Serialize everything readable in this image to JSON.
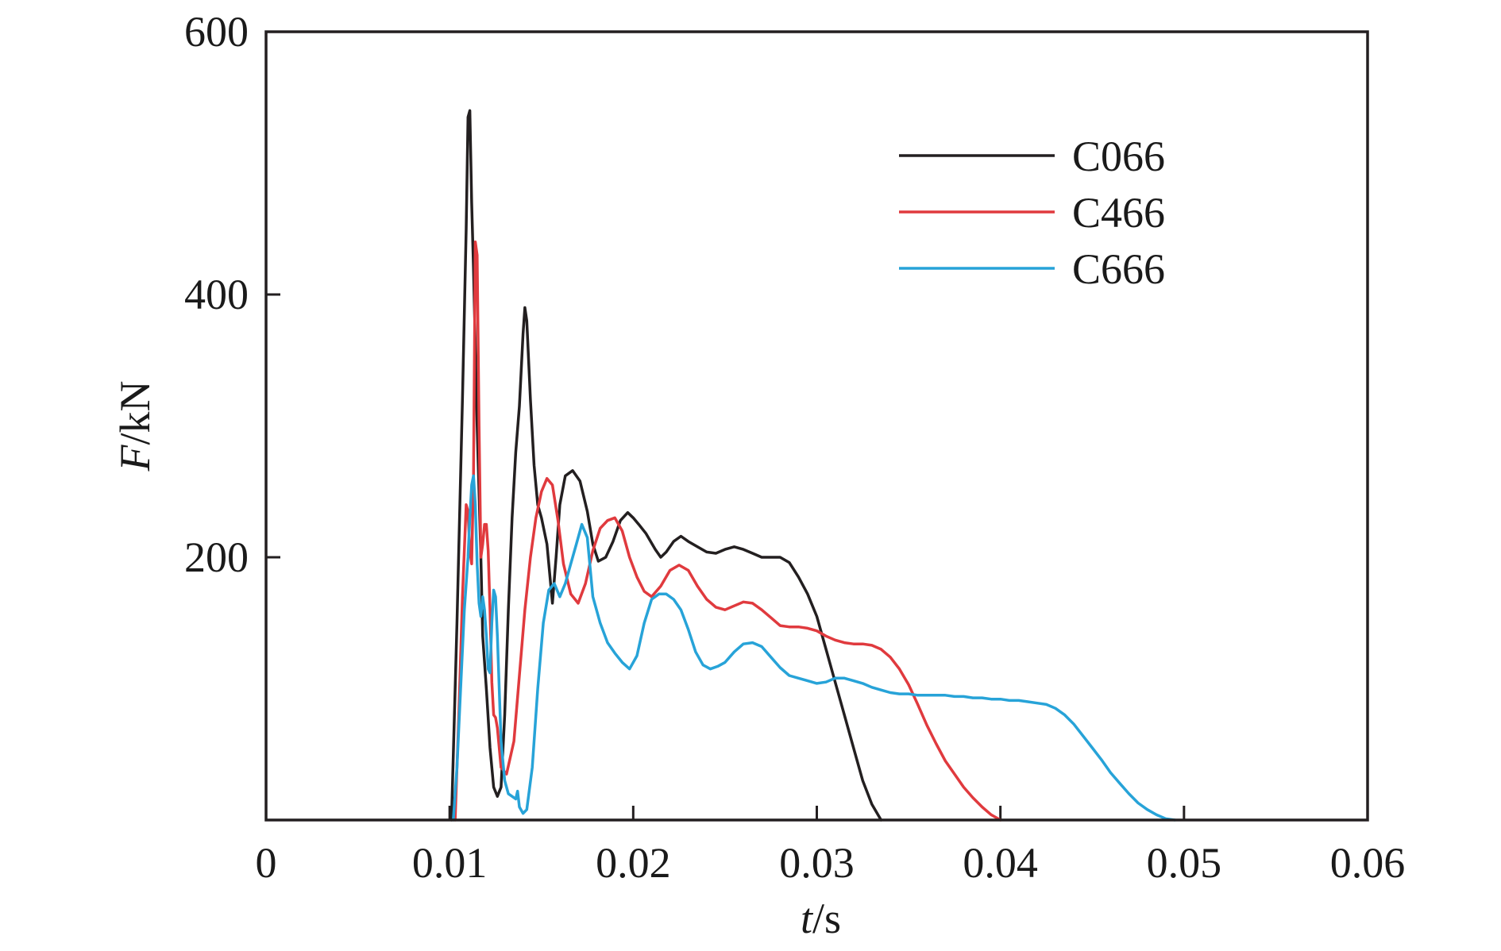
{
  "chart_data": {
    "type": "line",
    "title": "",
    "xlabel": {
      "var": "t",
      "unit": "/s"
    },
    "ylabel": {
      "var": "F",
      "unit": "/kN"
    },
    "xlim": [
      0,
      0.06
    ],
    "ylim": [
      0,
      600
    ],
    "xticks": [
      0,
      0.01,
      0.02,
      0.03,
      0.04,
      0.05,
      0.06
    ],
    "xtick_labels": [
      "0",
      "0.01",
      "0.02",
      "0.03",
      "0.04",
      "0.05",
      "0.06"
    ],
    "yticks": [
      200,
      400,
      600
    ],
    "ytick_labels": [
      "200",
      "400",
      "600"
    ],
    "grid": false,
    "legend_position": "top-right",
    "series": [
      {
        "name": "C066",
        "color": "#231f20",
        "points": [
          [
            0.0101,
            0
          ],
          [
            0.0104,
            150
          ],
          [
            0.0107,
            320
          ],
          [
            0.0109,
            450
          ],
          [
            0.011,
            535
          ],
          [
            0.0111,
            540
          ],
          [
            0.0112,
            470
          ],
          [
            0.0113,
            420
          ],
          [
            0.0115,
            300
          ],
          [
            0.0117,
            200
          ],
          [
            0.0118,
            140
          ],
          [
            0.012,
            100
          ],
          [
            0.0122,
            55
          ],
          [
            0.0124,
            25
          ],
          [
            0.0126,
            18
          ],
          [
            0.0128,
            25
          ],
          [
            0.013,
            80
          ],
          [
            0.0132,
            160
          ],
          [
            0.0134,
            230
          ],
          [
            0.0136,
            280
          ],
          [
            0.0138,
            315
          ],
          [
            0.014,
            370
          ],
          [
            0.0141,
            390
          ],
          [
            0.0142,
            380
          ],
          [
            0.0144,
            320
          ],
          [
            0.0146,
            270
          ],
          [
            0.0148,
            240
          ],
          [
            0.015,
            230
          ],
          [
            0.0153,
            210
          ],
          [
            0.0156,
            165
          ],
          [
            0.0158,
            200
          ],
          [
            0.016,
            240
          ],
          [
            0.0163,
            262
          ],
          [
            0.0167,
            266
          ],
          [
            0.0171,
            258
          ],
          [
            0.0175,
            235
          ],
          [
            0.0178,
            210
          ],
          [
            0.0181,
            197
          ],
          [
            0.0185,
            200
          ],
          [
            0.0189,
            212
          ],
          [
            0.0193,
            228
          ],
          [
            0.0197,
            234
          ],
          [
            0.02,
            230
          ],
          [
            0.0203,
            225
          ],
          [
            0.0207,
            218
          ],
          [
            0.0212,
            206
          ],
          [
            0.0215,
            200
          ],
          [
            0.0218,
            204
          ],
          [
            0.0222,
            212
          ],
          [
            0.0226,
            216
          ],
          [
            0.023,
            212
          ],
          [
            0.0235,
            208
          ],
          [
            0.024,
            204
          ],
          [
            0.0245,
            203
          ],
          [
            0.025,
            206
          ],
          [
            0.0255,
            208
          ],
          [
            0.026,
            206
          ],
          [
            0.0265,
            203
          ],
          [
            0.027,
            200
          ],
          [
            0.0275,
            200
          ],
          [
            0.028,
            200
          ],
          [
            0.0285,
            196
          ],
          [
            0.029,
            185
          ],
          [
            0.0295,
            172
          ],
          [
            0.03,
            155
          ],
          [
            0.0305,
            130
          ],
          [
            0.031,
            105
          ],
          [
            0.0315,
            80
          ],
          [
            0.032,
            55
          ],
          [
            0.0325,
            30
          ],
          [
            0.033,
            12
          ],
          [
            0.0335,
            0
          ]
        ]
      },
      {
        "name": "C466",
        "color": "#e03a3e",
        "points": [
          [
            0.0103,
            0
          ],
          [
            0.0105,
            80
          ],
          [
            0.0107,
            170
          ],
          [
            0.0109,
            240
          ],
          [
            0.011,
            235
          ],
          [
            0.0111,
            205
          ],
          [
            0.0112,
            195
          ],
          [
            0.0113,
            260
          ],
          [
            0.0114,
            440
          ],
          [
            0.0115,
            430
          ],
          [
            0.0116,
            300
          ],
          [
            0.0117,
            200
          ],
          [
            0.0118,
            210
          ],
          [
            0.0119,
            225
          ],
          [
            0.012,
            225
          ],
          [
            0.0121,
            205
          ],
          [
            0.0122,
            160
          ],
          [
            0.0123,
            105
          ],
          [
            0.0124,
            80
          ],
          [
            0.0125,
            78
          ],
          [
            0.0126,
            70
          ],
          [
            0.0128,
            40
          ],
          [
            0.0131,
            35
          ],
          [
            0.0135,
            60
          ],
          [
            0.0138,
            110
          ],
          [
            0.0141,
            160
          ],
          [
            0.0144,
            200
          ],
          [
            0.0147,
            230
          ],
          [
            0.015,
            250
          ],
          [
            0.0153,
            260
          ],
          [
            0.0156,
            255
          ],
          [
            0.0159,
            228
          ],
          [
            0.0162,
            195
          ],
          [
            0.0166,
            172
          ],
          [
            0.017,
            165
          ],
          [
            0.0174,
            180
          ],
          [
            0.0178,
            205
          ],
          [
            0.0182,
            222
          ],
          [
            0.0186,
            228
          ],
          [
            0.019,
            230
          ],
          [
            0.0194,
            220
          ],
          [
            0.0198,
            200
          ],
          [
            0.0202,
            185
          ],
          [
            0.0206,
            174
          ],
          [
            0.021,
            170
          ],
          [
            0.0215,
            178
          ],
          [
            0.022,
            190
          ],
          [
            0.0225,
            194
          ],
          [
            0.023,
            190
          ],
          [
            0.0235,
            178
          ],
          [
            0.024,
            168
          ],
          [
            0.0245,
            162
          ],
          [
            0.025,
            160
          ],
          [
            0.0255,
            163
          ],
          [
            0.026,
            166
          ],
          [
            0.0265,
            165
          ],
          [
            0.027,
            160
          ],
          [
            0.0275,
            154
          ],
          [
            0.028,
            148
          ],
          [
            0.0285,
            147
          ],
          [
            0.029,
            147
          ],
          [
            0.0295,
            146
          ],
          [
            0.03,
            144
          ],
          [
            0.0305,
            140
          ],
          [
            0.031,
            137
          ],
          [
            0.0315,
            135
          ],
          [
            0.032,
            134
          ],
          [
            0.0325,
            134
          ],
          [
            0.033,
            133
          ],
          [
            0.0335,
            130
          ],
          [
            0.034,
            124
          ],
          [
            0.0345,
            115
          ],
          [
            0.035,
            103
          ],
          [
            0.0355,
            88
          ],
          [
            0.036,
            72
          ],
          [
            0.0365,
            58
          ],
          [
            0.037,
            45
          ],
          [
            0.0375,
            35
          ],
          [
            0.038,
            25
          ],
          [
            0.0385,
            17
          ],
          [
            0.039,
            10
          ],
          [
            0.0395,
            4
          ],
          [
            0.04,
            0
          ]
        ]
      },
      {
        "name": "C666",
        "color": "#27a3d8",
        "points": [
          [
            0.0102,
            0
          ],
          [
            0.0104,
            40
          ],
          [
            0.0106,
            100
          ],
          [
            0.0108,
            160
          ],
          [
            0.011,
            200
          ],
          [
            0.0111,
            230
          ],
          [
            0.0112,
            255
          ],
          [
            0.0113,
            262
          ],
          [
            0.0114,
            240
          ],
          [
            0.0115,
            195
          ],
          [
            0.0116,
            165
          ],
          [
            0.0117,
            155
          ],
          [
            0.0118,
            170
          ],
          [
            0.0119,
            160
          ],
          [
            0.012,
            140
          ],
          [
            0.0121,
            115
          ],
          [
            0.0122,
            112
          ],
          [
            0.0123,
            150
          ],
          [
            0.0124,
            175
          ],
          [
            0.0125,
            170
          ],
          [
            0.0126,
            140
          ],
          [
            0.0127,
            100
          ],
          [
            0.0128,
            60
          ],
          [
            0.013,
            30
          ],
          [
            0.0132,
            20
          ],
          [
            0.0134,
            18
          ],
          [
            0.0136,
            16
          ],
          [
            0.0137,
            22
          ],
          [
            0.0138,
            10
          ],
          [
            0.014,
            5
          ],
          [
            0.0142,
            8
          ],
          [
            0.0145,
            40
          ],
          [
            0.0148,
            100
          ],
          [
            0.0151,
            150
          ],
          [
            0.0154,
            175
          ],
          [
            0.0157,
            180
          ],
          [
            0.016,
            170
          ],
          [
            0.0163,
            180
          ],
          [
            0.0166,
            195
          ],
          [
            0.0169,
            210
          ],
          [
            0.0172,
            225
          ],
          [
            0.0175,
            215
          ],
          [
            0.0178,
            170
          ],
          [
            0.0182,
            150
          ],
          [
            0.0186,
            135
          ],
          [
            0.019,
            127
          ],
          [
            0.0194,
            120
          ],
          [
            0.0198,
            115
          ],
          [
            0.0202,
            125
          ],
          [
            0.0206,
            150
          ],
          [
            0.021,
            168
          ],
          [
            0.0214,
            172
          ],
          [
            0.0218,
            172
          ],
          [
            0.0222,
            168
          ],
          [
            0.0226,
            160
          ],
          [
            0.023,
            145
          ],
          [
            0.0234,
            128
          ],
          [
            0.0238,
            118
          ],
          [
            0.0242,
            115
          ],
          [
            0.0246,
            117
          ],
          [
            0.025,
            120
          ],
          [
            0.0255,
            128
          ],
          [
            0.026,
            134
          ],
          [
            0.0265,
            135
          ],
          [
            0.027,
            132
          ],
          [
            0.0275,
            124
          ],
          [
            0.028,
            116
          ],
          [
            0.0285,
            110
          ],
          [
            0.029,
            108
          ],
          [
            0.0295,
            106
          ],
          [
            0.03,
            104
          ],
          [
            0.0305,
            105
          ],
          [
            0.031,
            108
          ],
          [
            0.0315,
            108
          ],
          [
            0.032,
            106
          ],
          [
            0.0325,
            104
          ],
          [
            0.033,
            101
          ],
          [
            0.0335,
            99
          ],
          [
            0.034,
            97
          ],
          [
            0.0345,
            96
          ],
          [
            0.035,
            96
          ],
          [
            0.0355,
            95
          ],
          [
            0.036,
            95
          ],
          [
            0.0365,
            95
          ],
          [
            0.037,
            95
          ],
          [
            0.0375,
            94
          ],
          [
            0.038,
            94
          ],
          [
            0.0385,
            93
          ],
          [
            0.039,
            93
          ],
          [
            0.0395,
            92
          ],
          [
            0.04,
            92
          ],
          [
            0.0405,
            91
          ],
          [
            0.041,
            91
          ],
          [
            0.0415,
            90
          ],
          [
            0.042,
            89
          ],
          [
            0.0425,
            88
          ],
          [
            0.043,
            85
          ],
          [
            0.0435,
            80
          ],
          [
            0.044,
            73
          ],
          [
            0.0445,
            64
          ],
          [
            0.045,
            55
          ],
          [
            0.0455,
            46
          ],
          [
            0.046,
            36
          ],
          [
            0.0465,
            28
          ],
          [
            0.047,
            20
          ],
          [
            0.0475,
            13
          ],
          [
            0.048,
            8
          ],
          [
            0.0485,
            4
          ],
          [
            0.049,
            1
          ],
          [
            0.0495,
            0
          ]
        ]
      }
    ]
  }
}
